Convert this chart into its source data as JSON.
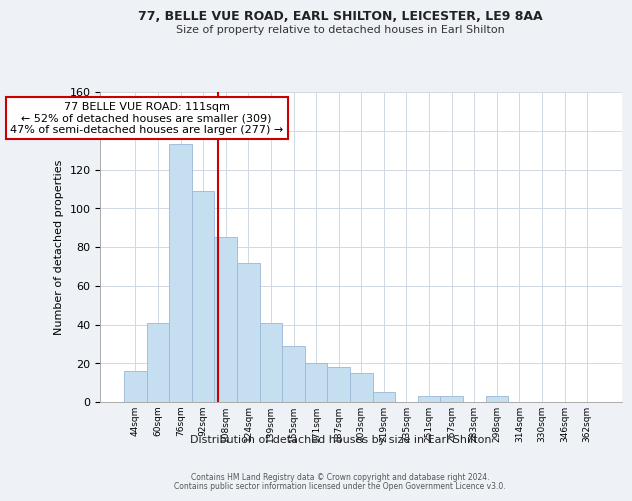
{
  "title1": "77, BELLE VUE ROAD, EARL SHILTON, LEICESTER, LE9 8AA",
  "title2": "Size of property relative to detached houses in Earl Shilton",
  "xlabel": "Distribution of detached houses by size in Earl Shilton",
  "ylabel": "Number of detached properties",
  "bar_labels": [
    "44sqm",
    "60sqm",
    "76sqm",
    "92sqm",
    "108sqm",
    "124sqm",
    "139sqm",
    "155sqm",
    "171sqm",
    "187sqm",
    "203sqm",
    "219sqm",
    "235sqm",
    "251sqm",
    "267sqm",
    "283sqm",
    "298sqm",
    "314sqm",
    "330sqm",
    "346sqm",
    "362sqm"
  ],
  "bar_values": [
    16,
    41,
    133,
    109,
    85,
    72,
    41,
    29,
    20,
    18,
    15,
    5,
    0,
    3,
    3,
    0,
    3,
    0,
    0,
    0,
    0
  ],
  "bar_color": "#c6dff0",
  "bar_edge_color": "#9ab8d8",
  "annotation_title": "77 BELLE VUE ROAD: 111sqm",
  "annotation_line1": "← 52% of detached houses are smaller (309)",
  "annotation_line2": "47% of semi-detached houses are larger (277) →",
  "annotation_box_color": "#ffffff",
  "annotation_box_edge_color": "#cc0000",
  "vline_color": "#cc0000",
  "vline_x_idx": 3.65,
  "ylim": [
    0,
    160
  ],
  "yticks": [
    0,
    20,
    40,
    60,
    80,
    100,
    120,
    140,
    160
  ],
  "footer1": "Contains HM Land Registry data © Crown copyright and database right 2024.",
  "footer2": "Contains public sector information licensed under the Open Government Licence v3.0.",
  "bg_color": "#eef2f7",
  "plot_bg_color": "#ffffff",
  "grid_color": "#d0d8e4"
}
